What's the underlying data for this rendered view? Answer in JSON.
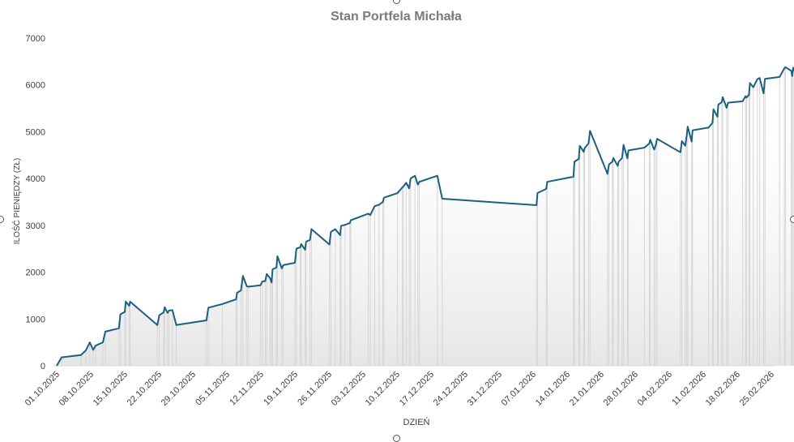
{
  "chart_data": {
    "type": "area",
    "title": "Stan Portfela Michała",
    "xlabel": "DZIEŃ",
    "ylabel": "ILOŚĆ PIENIĘDZY (ZŁ)",
    "ylim": [
      0,
      7000
    ],
    "yticks": [
      "0",
      "1000",
      "2000",
      "3000",
      "4000",
      "5000",
      "6000",
      "7000"
    ],
    "xticks": [
      "01.10.2025",
      "08.10.2025",
      "15.10.2025",
      "22.10.2025",
      "29.10.2025",
      "05.11.2025",
      "12.11.2025",
      "19.11.2025",
      "26.11.2025",
      "03.12.2025",
      "10.12.2025",
      "17.12.2025",
      "24.12.2025",
      "31.12.2025",
      "07.01.2026",
      "14.01.2026",
      "21.01.2026",
      "28.01.2026",
      "04.02.2026",
      "11.02.2026",
      "18.02.2026",
      "25.02.2026"
    ],
    "x_range_days": [
      0,
      151
    ],
    "line_color": "#1d5f7f",
    "grid": false,
    "series": [
      {
        "name": "Stan portfela",
        "points": [
          [
            0,
            0
          ],
          [
            1,
            180
          ],
          [
            5,
            230
          ],
          [
            6,
            330
          ],
          [
            6.8,
            500
          ],
          [
            7.5,
            340
          ],
          [
            8,
            430
          ],
          [
            9.5,
            500
          ],
          [
            10,
            730
          ],
          [
            12.8,
            800
          ],
          [
            13.1,
            1100
          ],
          [
            14,
            1150
          ],
          [
            14.2,
            1370
          ],
          [
            14.9,
            1280
          ],
          [
            15.1,
            1370
          ],
          [
            20.7,
            870
          ],
          [
            21.1,
            1080
          ],
          [
            22,
            1140
          ],
          [
            22.2,
            1250
          ],
          [
            22.8,
            1130
          ],
          [
            23.1,
            1180
          ],
          [
            23.8,
            1190
          ],
          [
            24.6,
            870
          ],
          [
            30.8,
            970
          ],
          [
            31.2,
            1240
          ],
          [
            34.1,
            1320
          ],
          [
            36.9,
            1420
          ],
          [
            37.1,
            1560
          ],
          [
            37.9,
            1610
          ],
          [
            38.3,
            1920
          ],
          [
            39.1,
            1700
          ],
          [
            39.4,
            1690
          ],
          [
            41.9,
            1720
          ],
          [
            42.3,
            1800
          ],
          [
            42.9,
            1810
          ],
          [
            43.2,
            1960
          ],
          [
            43.9,
            1870
          ],
          [
            44.2,
            1780
          ],
          [
            44.4,
            2060
          ],
          [
            45.2,
            2100
          ],
          [
            45.4,
            2340
          ],
          [
            46.3,
            2080
          ],
          [
            46.6,
            2150
          ],
          [
            49,
            2200
          ],
          [
            49.3,
            2500
          ],
          [
            50.1,
            2530
          ],
          [
            50.3,
            2600
          ],
          [
            51.1,
            2480
          ],
          [
            51.3,
            2650
          ],
          [
            52.1,
            2690
          ],
          [
            52.4,
            2920
          ],
          [
            56.1,
            2590
          ],
          [
            56.4,
            2860
          ],
          [
            57.3,
            2920
          ],
          [
            58.3,
            2790
          ],
          [
            58.5,
            2990
          ],
          [
            59.3,
            3010
          ],
          [
            60.3,
            3050
          ],
          [
            60.5,
            3110
          ],
          [
            64.1,
            3250
          ],
          [
            64.5,
            3220
          ],
          [
            65.4,
            3410
          ],
          [
            66.3,
            3440
          ],
          [
            67.1,
            3500
          ],
          [
            67.3,
            3590
          ],
          [
            70.1,
            3690
          ],
          [
            71.1,
            3810
          ],
          [
            71.3,
            3830
          ],
          [
            71.9,
            3910
          ],
          [
            72.5,
            3790
          ],
          [
            72.8,
            4000
          ],
          [
            73.7,
            4060
          ],
          [
            74.3,
            3870
          ],
          [
            74.6,
            3930
          ],
          [
            78.3,
            4060
          ],
          [
            79.3,
            3570
          ],
          [
            98.7,
            3430
          ],
          [
            98.9,
            3690
          ],
          [
            100.7,
            3780
          ],
          [
            100.9,
            3930
          ],
          [
            106.3,
            4040
          ],
          [
            106.5,
            4360
          ],
          [
            107.4,
            4420
          ],
          [
            107.6,
            4700
          ],
          [
            108.4,
            4570
          ],
          [
            108.6,
            4650
          ],
          [
            109.4,
            4750
          ],
          [
            109.7,
            5020
          ],
          [
            113.3,
            4100
          ],
          [
            113.6,
            4300
          ],
          [
            114.3,
            4360
          ],
          [
            114.5,
            4440
          ],
          [
            115.4,
            4270
          ],
          [
            115.6,
            4360
          ],
          [
            116.3,
            4440
          ],
          [
            116.6,
            4720
          ],
          [
            117.4,
            4430
          ],
          [
            117.6,
            4600
          ],
          [
            120.9,
            4660
          ],
          [
            121.9,
            4750
          ],
          [
            122.1,
            4830
          ],
          [
            122.9,
            4620
          ],
          [
            123.2,
            4700
          ],
          [
            123.5,
            4850
          ],
          [
            128.3,
            4560
          ],
          [
            128.6,
            4800
          ],
          [
            129.3,
            4700
          ],
          [
            129.6,
            4920
          ],
          [
            129.8,
            5110
          ],
          [
            130.6,
            4790
          ],
          [
            130.8,
            5030
          ],
          [
            134.1,
            5090
          ],
          [
            134.9,
            5190
          ],
          [
            135.1,
            5480
          ],
          [
            135.9,
            5320
          ],
          [
            136.1,
            5580
          ],
          [
            136.8,
            5630
          ],
          [
            137,
            5740
          ],
          [
            137.8,
            5510
          ],
          [
            138.1,
            5620
          ],
          [
            141.1,
            5650
          ],
          [
            141.7,
            5760
          ],
          [
            141.9,
            5730
          ],
          [
            142.4,
            5790
          ],
          [
            142.6,
            6040
          ],
          [
            143.3,
            5950
          ],
          [
            144.1,
            6120
          ],
          [
            144.6,
            6150
          ],
          [
            145.4,
            5820
          ],
          [
            145.7,
            6130
          ],
          [
            148.7,
            6170
          ],
          [
            149.7,
            6360
          ],
          [
            149.9,
            6380
          ],
          [
            151.1,
            6300
          ],
          [
            151.3,
            6190
          ],
          [
            151.5,
            6370
          ],
          [
            152.2,
            6190
          ],
          [
            152.7,
            6020
          ],
          [
            153,
            6250
          ]
        ]
      }
    ]
  }
}
